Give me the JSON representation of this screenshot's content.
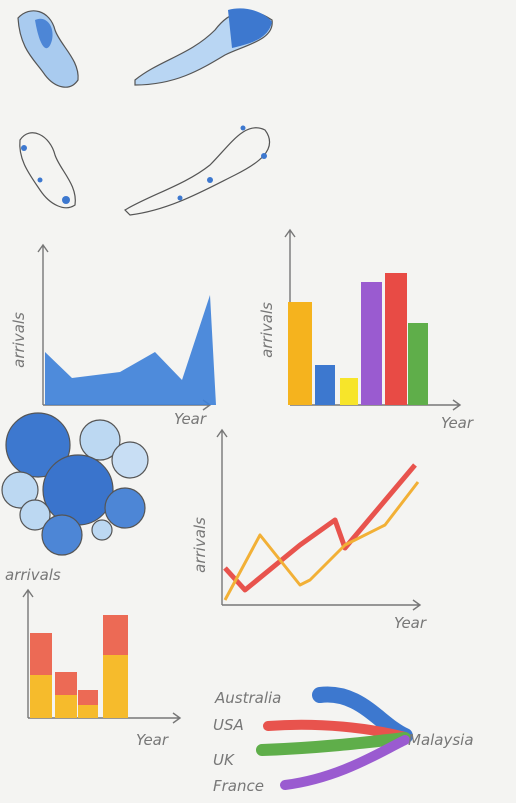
{
  "area_sketch": {
    "y_label": "arrivals",
    "x_label": "Year"
  },
  "bar_sketch": {
    "y_label": "arrivals",
    "x_label": "Year"
  },
  "line_sketch": {
    "y_label": "arrivals",
    "x_label": "Year"
  },
  "stacked_sketch": {
    "y_label": "arrivals",
    "x_label": "Year"
  },
  "flow_sketch": {
    "sources": [
      "Australia",
      "USA",
      "UK",
      "France"
    ],
    "target": "Malaysia"
  }
}
